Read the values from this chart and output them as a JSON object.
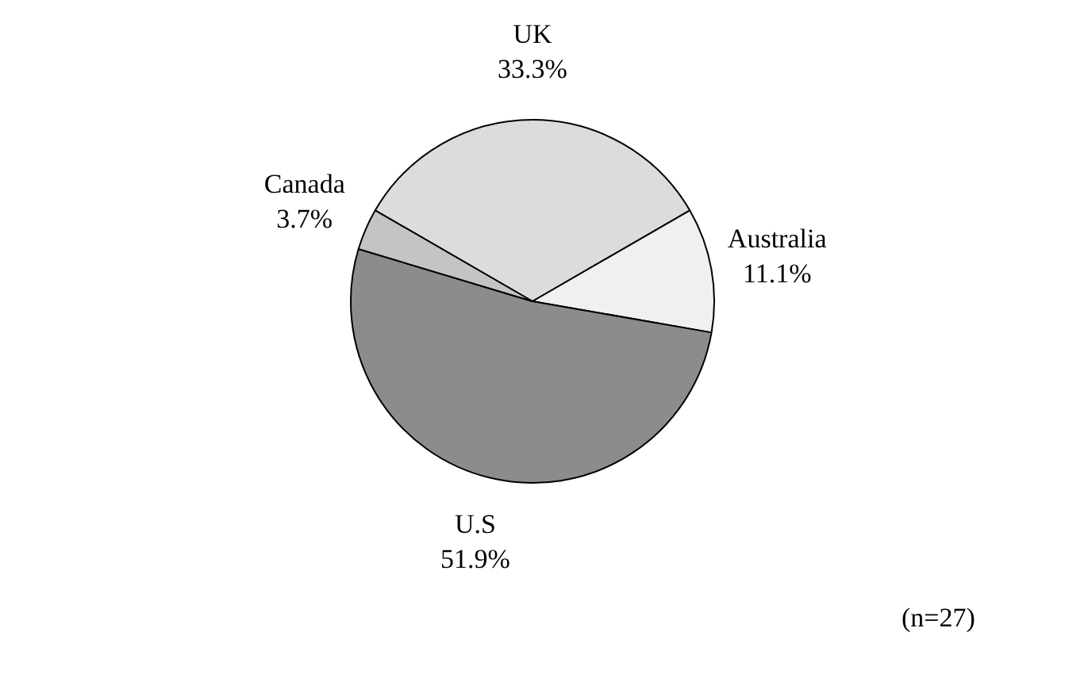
{
  "chart_data": {
    "type": "pie",
    "categories": [
      "UK",
      "Australia",
      "U.S",
      "Canada"
    ],
    "values": [
      33.3,
      11.1,
      51.9,
      3.7
    ],
    "value_labels": [
      "33.3%",
      "11.1%",
      "51.9%",
      "3.7%"
    ],
    "colors": [
      "#dcdcdc",
      "#f0f0f0",
      "#8c8c8c",
      "#c4c4c4"
    ],
    "legend": false,
    "annotations": [
      "(n=27)"
    ]
  }
}
